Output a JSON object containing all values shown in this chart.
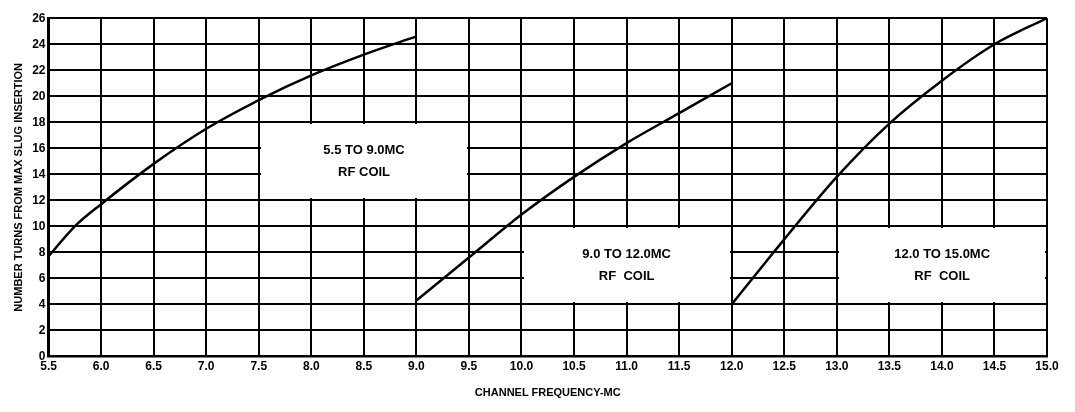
{
  "chart_data": {
    "type": "line",
    "xlabel": "CHANNEL FREQUENCY-MC",
    "ylabel": "NUMBER TURNS FROM MAX SLUG INSERTION",
    "series": [
      {
        "color": "#000000",
        "x": [
          5.5,
          5.75,
          6.0,
          6.5,
          7.0,
          7.5,
          8.0,
          8.5,
          9.0
        ],
        "values": [
          7.7,
          10,
          11.7,
          14.8,
          17.5,
          19.7,
          21.6,
          23.2,
          24.6
        ]
      },
      {
        "color": "#000000",
        "x": [
          9.0,
          9.5,
          10.0,
          10.5,
          11.0,
          11.5,
          12.0
        ],
        "values": [
          4.3,
          7.6,
          10.9,
          13.8,
          16.4,
          18.7,
          21
        ]
      },
      {
        "color": "#000000",
        "x": [
          12.0,
          12.5,
          13.0,
          13.5,
          14.0,
          14.5,
          15.0
        ],
        "values": [
          4,
          9,
          13.8,
          17.9,
          21.2,
          24,
          26
        ]
      }
    ],
    "annotations": [
      "5.5 TO 9.0MC\nRF COIL",
      "9.0 TO 12.0MC\nRF  COIL",
      "12.0 TO 15.0MC\nRF  COIL"
    ],
    "xlim": [
      5.5,
      15.0
    ],
    "xticks": [
      {
        "value": 5.5,
        "label": "5.5"
      },
      {
        "value": 6,
        "label": "6.0"
      },
      {
        "value": 6.5,
        "label": "6.5"
      },
      {
        "value": 7,
        "label": "7.0"
      },
      {
        "value": 7.5,
        "label": "7.5"
      },
      {
        "value": 8,
        "label": "8.0"
      },
      {
        "value": 8.5,
        "label": "8.5"
      },
      {
        "value": 9,
        "label": "9.0"
      },
      {
        "value": 9.5,
        "label": "9.5"
      },
      {
        "value": 10,
        "label": "10.0"
      },
      {
        "value": 10.5,
        "label": "10.5"
      },
      {
        "value": 11,
        "label": "11.0"
      },
      {
        "value": 11.5,
        "label": "11.5"
      },
      {
        "value": 12,
        "label": "12.0"
      },
      {
        "value": 12.5,
        "label": "12.5"
      },
      {
        "value": 13,
        "label": "13.0"
      },
      {
        "value": 13.5,
        "label": "13.5"
      },
      {
        "value": 14,
        "label": "14.0"
      },
      {
        "value": 14.5,
        "label": "14.5"
      },
      {
        "value": 15,
        "label": "15.0"
      }
    ],
    "ylim": [
      0,
      26
    ],
    "yticks": [
      0,
      2,
      4,
      6,
      8,
      10,
      12,
      14,
      16,
      18,
      20,
      22,
      24,
      26
    ],
    "grid": true,
    "marker": "none",
    "line_style": "solid"
  }
}
